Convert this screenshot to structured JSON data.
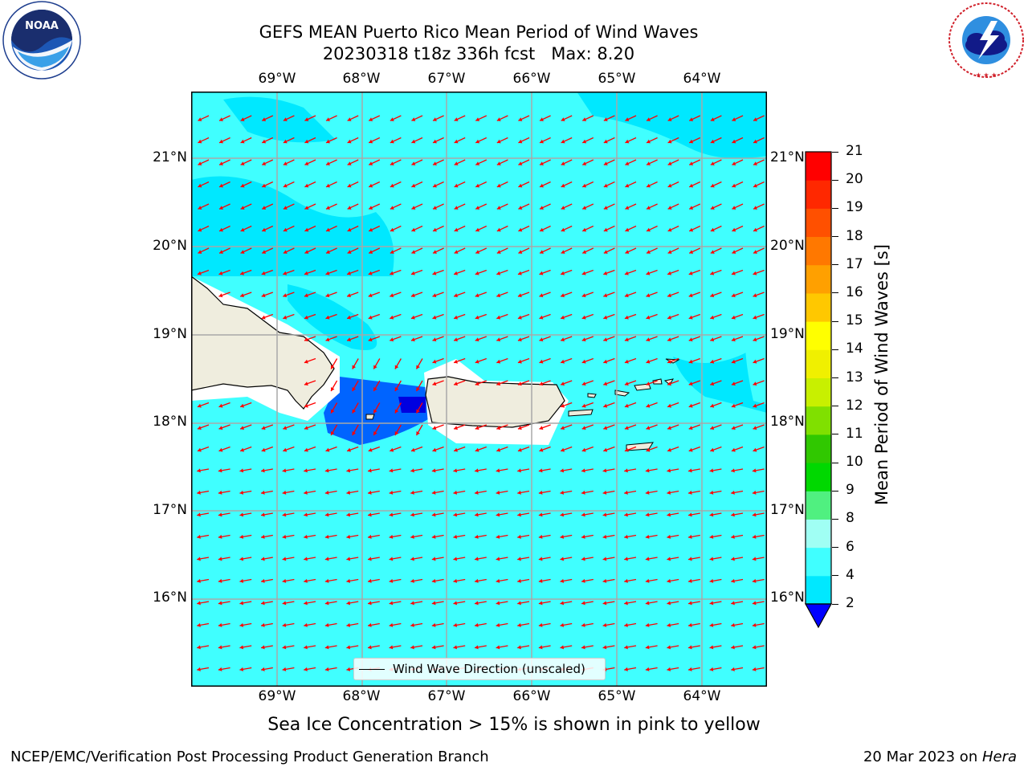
{
  "title": {
    "line1": "GEFS MEAN Puerto Rico Mean Period of Wind Waves",
    "line2": "20230318 t18z 336h fcst   Max: 8.20"
  },
  "map": {
    "lon_labels": [
      "69°W",
      "68°W",
      "67°W",
      "66°W",
      "65°W",
      "64°W"
    ],
    "lat_labels": [
      "21°N",
      "20°N",
      "19°N",
      "18°N",
      "17°N",
      "16°N"
    ],
    "legend_label": "Wind Wave Direction (unscaled)",
    "arrow_color": "#ff0000",
    "ocean_color": "#00ffff",
    "land_color": "#efedde"
  },
  "colorbar": {
    "label": "Mean Period of Wind Waves [s]",
    "ticks": [
      "2",
      "4",
      "6",
      "8",
      "9",
      "10",
      "11",
      "12",
      "13",
      "14",
      "15",
      "16",
      "17",
      "18",
      "19",
      "20",
      "21"
    ],
    "colors": [
      "#0064ff",
      "#00e8ff",
      "#40ffff",
      "#a0fff4",
      "#50f080",
      "#00d800",
      "#30c800",
      "#80e000",
      "#c8f000",
      "#f0f000",
      "#ffff00",
      "#ffc800",
      "#ffa000",
      "#ff7800",
      "#ff5000",
      "#ff2800",
      "#ff0000"
    ],
    "underflow_color": "#0000ff"
  },
  "caption": "Sea Ice Concentration > 15% is shown in pink to yellow",
  "footer": {
    "left": "NCEP/EMC/Verification Post Processing Product Generation Branch",
    "right_date": "20 Mar 2023 on ",
    "right_host": "Hera"
  },
  "logos": {
    "noaa_text": "NOAA",
    "noaa_ring": "NATIONAL OCEANIC AND ATMOSPHERIC ADMINISTRATION · U.S. DEPARTMENT OF COMMERCE",
    "nws_ring": "NATIONAL WEATHER SERVICE"
  }
}
